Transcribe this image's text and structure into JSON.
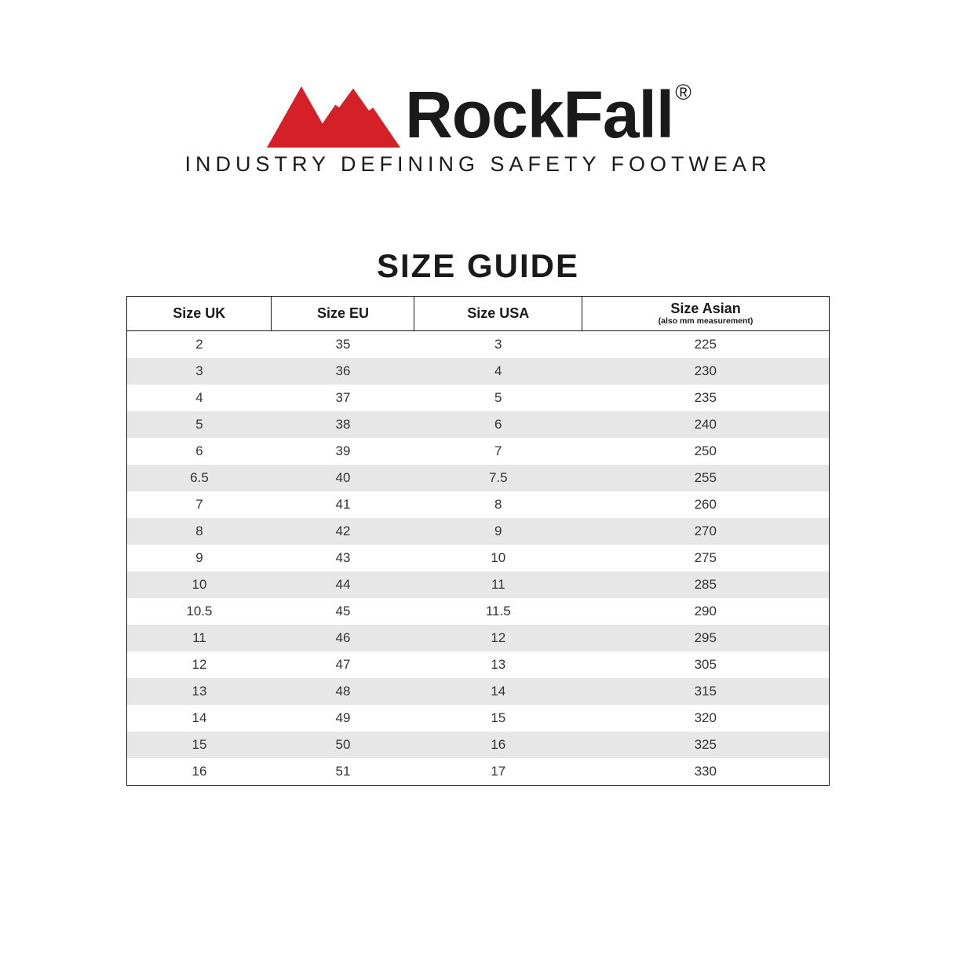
{
  "brand": {
    "name": "RockFall",
    "registered_symbol": "®",
    "tagline": "INDUSTRY DEFINING SAFETY FOOTWEAR",
    "logo_color": "#d62027",
    "logo_outline": "#ffffff",
    "text_color": "#1a1a1a"
  },
  "title": "SIZE GUIDE",
  "table": {
    "type": "table",
    "border_color": "#1a1a1a",
    "row_alt_bg": "#e7e7e7",
    "row_bg": "#ffffff",
    "header_fontsize": 18,
    "cell_fontsize": 17,
    "columns": [
      {
        "label": "Size UK",
        "sub": ""
      },
      {
        "label": "Size EU",
        "sub": ""
      },
      {
        "label": "Size USA",
        "sub": ""
      },
      {
        "label": "Size Asian",
        "sub": "(also mm measurement)"
      }
    ],
    "rows": [
      [
        "2",
        "35",
        "3",
        "225"
      ],
      [
        "3",
        "36",
        "4",
        "230"
      ],
      [
        "4",
        "37",
        "5",
        "235"
      ],
      [
        "5",
        "38",
        "6",
        "240"
      ],
      [
        "6",
        "39",
        "7",
        "250"
      ],
      [
        "6.5",
        "40",
        "7.5",
        "255"
      ],
      [
        "7",
        "41",
        "8",
        "260"
      ],
      [
        "8",
        "42",
        "9",
        "270"
      ],
      [
        "9",
        "43",
        "10",
        "275"
      ],
      [
        "10",
        "44",
        "11",
        "285"
      ],
      [
        "10.5",
        "45",
        "11.5",
        "290"
      ],
      [
        "11",
        "46",
        "12",
        "295"
      ],
      [
        "12",
        "47",
        "13",
        "305"
      ],
      [
        "13",
        "48",
        "14",
        "315"
      ],
      [
        "14",
        "49",
        "15",
        "320"
      ],
      [
        "15",
        "50",
        "16",
        "325"
      ],
      [
        "16",
        "51",
        "17",
        "330"
      ]
    ]
  }
}
